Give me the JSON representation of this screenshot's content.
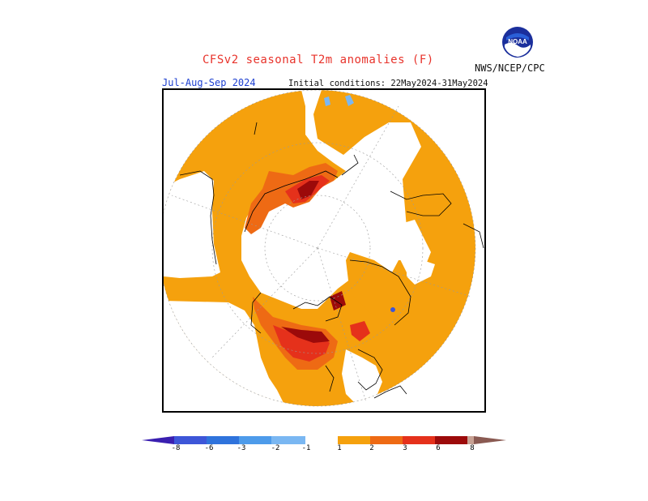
{
  "header": {
    "title": "CFSv2 seasonal T2m anomalies (F)",
    "agency": "NWS/NCEP/CPC",
    "season": "Jul-Aug-Sep 2024",
    "initial_conditions": "Initial conditions: 22May2024-31May2024",
    "logo_text": "NOAA"
  },
  "legend": {
    "ticks": [
      "-8",
      "-6",
      "-3",
      "-2",
      "-1",
      "1",
      "2",
      "3",
      "6",
      "8"
    ],
    "colors": [
      "#3a1fb0",
      "#3d56d8",
      "#2f73dc",
      "#4d9bea",
      "#7ab7f2",
      "#ffffff",
      "#f5a10d",
      "#ee6a14",
      "#e5311b",
      "#9c0a0a",
      "#c8a294",
      "#8a5a52"
    ]
  },
  "map": {
    "projection": "north-polar-stereographic",
    "colors": {
      "light_orange": "#f5a10d",
      "orange_red": "#ee6a14",
      "red": "#e5311b",
      "dark_red": "#9c0a0a",
      "light_blue": "#7ab7f2",
      "blue": "#3d56d8"
    }
  }
}
